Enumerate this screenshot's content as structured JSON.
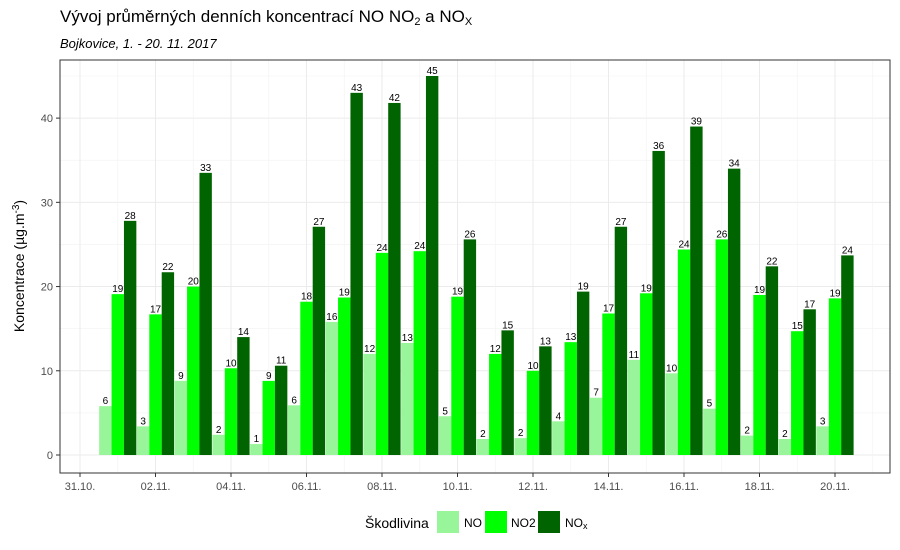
{
  "title_parts": {
    "a": "Vývoj průměrných denních koncentrací NO NO",
    "b": "2",
    "c": " a NO",
    "d": "X"
  },
  "subtitle": "Bojkovice, 1. - 20. 11. 2017",
  "chart_data": {
    "type": "bar",
    "title": "Vývoj průměrných denních koncentrací NO NO2 a NOX",
    "subtitle": "Bojkovice, 1. - 20. 11. 2017",
    "ylabel_parts": {
      "a": "Koncentrace  (µg.m",
      "b": "-3",
      "c": ")"
    },
    "ylim": [
      0,
      45
    ],
    "y_ticks": [
      0,
      10,
      20,
      30,
      40
    ],
    "x_ticks": [
      "31.10.",
      "02.11.",
      "04.11.",
      "06.11.",
      "08.11.",
      "10.11.",
      "12.11.",
      "14.11.",
      "16.11.",
      "18.11.",
      "20.11."
    ],
    "x_tick_days": [
      0,
      2,
      4,
      6,
      8,
      10,
      12,
      14,
      16,
      18,
      20
    ],
    "categories": [
      "01.11.",
      "02.11.",
      "03.11.",
      "04.11.",
      "05.11.",
      "06.11.",
      "07.11.",
      "08.11.",
      "09.11.",
      "10.11.",
      "11.11.",
      "12.11.",
      "13.11.",
      "14.11.",
      "15.11.",
      "16.11.",
      "17.11.",
      "18.11.",
      "19.11.",
      "20.11."
    ],
    "days": [
      1,
      2,
      3,
      4,
      5,
      6,
      7,
      8,
      9,
      10,
      11,
      12,
      13,
      14,
      15,
      16,
      17,
      18,
      19,
      20
    ],
    "series": [
      {
        "name": "NO",
        "color": "#99f599",
        "values": [
          5.8,
          3.4,
          8.8,
          2.4,
          1.3,
          5.9,
          15.8,
          12.0,
          13.3,
          4.6,
          1.9,
          2.0,
          4.0,
          6.8,
          11.3,
          9.7,
          5.5,
          2.3,
          1.9,
          3.4
        ],
        "labels": [
          "6",
          "3",
          "9",
          "2",
          "1",
          "6",
          "16",
          "12",
          "13",
          "5",
          "2",
          "2",
          "4",
          "7",
          "11",
          "10",
          "5",
          "2",
          "2",
          "3"
        ]
      },
      {
        "name": "NO2",
        "color": "#00ff00",
        "values": [
          19.1,
          16.7,
          20.0,
          10.3,
          8.8,
          18.2,
          18.7,
          24.0,
          24.2,
          18.8,
          12.0,
          10.0,
          13.4,
          16.8,
          19.2,
          24.4,
          25.6,
          19.0,
          14.7,
          18.6
        ],
        "labels": [
          "19",
          "17",
          "20",
          "10",
          "9",
          "18",
          "19",
          "24",
          "24",
          "19",
          "12",
          "10",
          "13",
          "17",
          "19",
          "24",
          "26",
          "19",
          "15",
          "19"
        ]
      },
      {
        "name": "NOx",
        "color": "#006400",
        "values": [
          27.8,
          21.7,
          33.5,
          14.0,
          10.6,
          27.1,
          43.0,
          41.8,
          45.0,
          25.6,
          14.8,
          12.9,
          19.4,
          27.1,
          36.1,
          39.0,
          34.0,
          22.4,
          17.3,
          23.7
        ],
        "labels": [
          "28",
          "22",
          "33",
          "14",
          "11",
          "27",
          "43",
          "42",
          "45",
          "26",
          "15",
          "13",
          "19",
          "27",
          "36",
          "39",
          "34",
          "22",
          "17",
          "24"
        ]
      }
    ],
    "legend": {
      "title": "Škodlivina",
      "items": [
        {
          "text_a": "NO",
          "text_b": ""
        },
        {
          "text_a": "NO2",
          "text_b": ""
        },
        {
          "text_a": "NO",
          "text_b": "x"
        }
      ]
    },
    "grid": true
  }
}
